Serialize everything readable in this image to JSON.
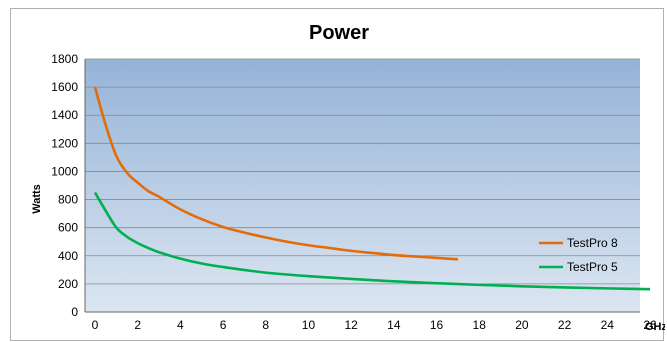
{
  "chart_data": {
    "type": "line",
    "title": "Power",
    "xlabel": "GHz",
    "ylabel": "Watts",
    "xlim": [
      0,
      26
    ],
    "ylim": [
      0,
      1800
    ],
    "xticks": [
      0,
      2,
      4,
      6,
      8,
      10,
      12,
      14,
      16,
      18,
      20,
      22,
      24,
      26
    ],
    "yticks": [
      0,
      200,
      400,
      600,
      800,
      1000,
      1200,
      1400,
      1600,
      1800
    ],
    "grid": true,
    "legend": "right",
    "series": [
      {
        "name": "TestPro 8",
        "color": "#e36c0a",
        "x": [
          0,
          0.5,
          1,
          1.5,
          2,
          2.5,
          3,
          4,
          5,
          6,
          7,
          8,
          9,
          10,
          11,
          12,
          13,
          14,
          15,
          16,
          17
        ],
        "y": [
          1600,
          1330,
          1110,
          990,
          920,
          860,
          820,
          730,
          660,
          605,
          565,
          530,
          500,
          475,
          455,
          435,
          420,
          405,
          395,
          385,
          375
        ]
      },
      {
        "name": "TestPro 5",
        "color": "#00b050",
        "x": [
          0,
          0.5,
          1,
          1.5,
          2,
          2.5,
          3,
          4,
          5,
          6,
          8,
          10,
          12,
          14,
          16,
          18,
          20,
          22,
          24,
          26
        ],
        "y": [
          850,
          720,
          600,
          535,
          490,
          455,
          425,
          380,
          345,
          320,
          280,
          255,
          235,
          218,
          205,
          193,
          183,
          175,
          168,
          162
        ]
      }
    ]
  }
}
